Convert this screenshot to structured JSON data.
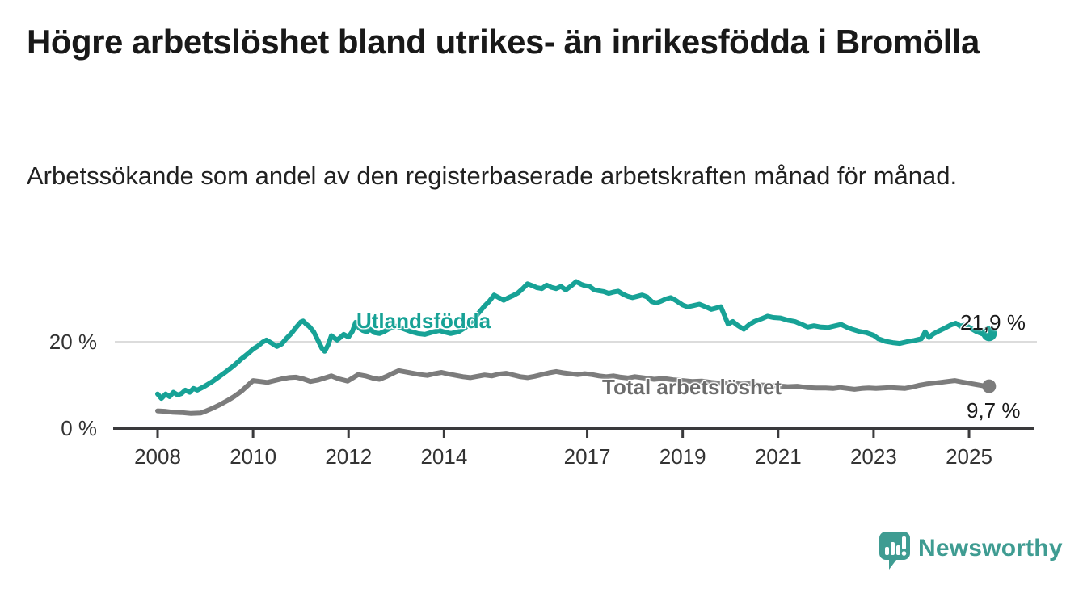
{
  "chart_data": {
    "type": "line",
    "title": "Högre arbetslöshet bland utrikes- än inrikesfödda i Bromölla",
    "subtitle": "Arbetssökande som andel av den registerbaserade arbetskraften månad för månad.",
    "unit": "%",
    "grid": "horizontal-only",
    "legend_position": "inline-labels-on-lines",
    "x_axis": {
      "ticks": [
        2008,
        2010,
        2012,
        2014,
        2017,
        2019,
        2021,
        2023,
        2025
      ],
      "range": [
        2007.1,
        2026.3
      ]
    },
    "y_axis": {
      "ticks": [
        {
          "value": 0,
          "label": "0 %"
        },
        {
          "value": 20,
          "label": "20 %"
        }
      ],
      "range": [
        0,
        43
      ]
    },
    "series": [
      {
        "name": "Utlandsfödda",
        "color": "#17a296",
        "end_value": 21.9,
        "end_label": "21,9 %",
        "points": [
          [
            2008.0,
            7.9
          ],
          [
            2008.08,
            6.9
          ],
          [
            2008.17,
            7.9
          ],
          [
            2008.25,
            7.3
          ],
          [
            2008.33,
            8.3
          ],
          [
            2008.42,
            7.7
          ],
          [
            2008.5,
            8.0
          ],
          [
            2008.58,
            8.8
          ],
          [
            2008.67,
            8.3
          ],
          [
            2008.75,
            9.2
          ],
          [
            2008.83,
            8.8
          ],
          [
            2008.92,
            9.3
          ],
          [
            2009.0,
            9.8
          ],
          [
            2009.15,
            10.8
          ],
          [
            2009.3,
            12.0
          ],
          [
            2009.45,
            13.2
          ],
          [
            2009.6,
            14.5
          ],
          [
            2009.75,
            16.0
          ],
          [
            2009.9,
            17.3
          ],
          [
            2010.0,
            18.3
          ],
          [
            2010.1,
            19.0
          ],
          [
            2010.2,
            19.9
          ],
          [
            2010.28,
            20.4
          ],
          [
            2010.4,
            19.6
          ],
          [
            2010.5,
            18.9
          ],
          [
            2010.6,
            19.5
          ],
          [
            2010.7,
            20.8
          ],
          [
            2010.8,
            21.9
          ],
          [
            2010.9,
            23.3
          ],
          [
            2011.0,
            24.6
          ],
          [
            2011.05,
            24.8
          ],
          [
            2011.12,
            24.0
          ],
          [
            2011.18,
            23.5
          ],
          [
            2011.27,
            22.3
          ],
          [
            2011.35,
            20.5
          ],
          [
            2011.44,
            18.5
          ],
          [
            2011.5,
            17.8
          ],
          [
            2011.57,
            19.2
          ],
          [
            2011.64,
            21.4
          ],
          [
            2011.7,
            20.9
          ],
          [
            2011.76,
            20.4
          ],
          [
            2011.83,
            21.0
          ],
          [
            2011.9,
            21.7
          ],
          [
            2012.0,
            21.1
          ],
          [
            2012.08,
            22.4
          ],
          [
            2012.15,
            24.5
          ],
          [
            2012.22,
            23.2
          ],
          [
            2012.3,
            22.6
          ],
          [
            2012.38,
            22.3
          ],
          [
            2012.45,
            22.9
          ],
          [
            2012.55,
            22.1
          ],
          [
            2012.65,
            21.9
          ],
          [
            2012.75,
            22.4
          ],
          [
            2012.85,
            23.0
          ],
          [
            2013.0,
            23.6
          ],
          [
            2013.15,
            23.0
          ],
          [
            2013.3,
            22.4
          ],
          [
            2013.45,
            21.9
          ],
          [
            2013.6,
            21.7
          ],
          [
            2013.75,
            22.2
          ],
          [
            2013.9,
            22.6
          ],
          [
            2014.0,
            22.3
          ],
          [
            2014.14,
            21.9
          ],
          [
            2014.3,
            22.3
          ],
          [
            2014.45,
            23.3
          ],
          [
            2014.6,
            24.9
          ],
          [
            2014.72,
            26.6
          ],
          [
            2014.85,
            28.3
          ],
          [
            2014.95,
            29.4
          ],
          [
            2015.05,
            30.8
          ],
          [
            2015.15,
            30.2
          ],
          [
            2015.25,
            29.6
          ],
          [
            2015.35,
            30.2
          ],
          [
            2015.45,
            30.7
          ],
          [
            2015.55,
            31.3
          ],
          [
            2015.65,
            32.3
          ],
          [
            2015.75,
            33.4
          ],
          [
            2015.85,
            33.0
          ],
          [
            2015.95,
            32.5
          ],
          [
            2016.05,
            32.3
          ],
          [
            2016.15,
            33.1
          ],
          [
            2016.25,
            32.6
          ],
          [
            2016.35,
            32.3
          ],
          [
            2016.45,
            32.8
          ],
          [
            2016.55,
            32.0
          ],
          [
            2016.65,
            32.8
          ],
          [
            2016.77,
            33.9
          ],
          [
            2016.87,
            33.3
          ],
          [
            2016.95,
            33.0
          ],
          [
            2017.05,
            32.8
          ],
          [
            2017.15,
            32.0
          ],
          [
            2017.25,
            31.8
          ],
          [
            2017.35,
            31.6
          ],
          [
            2017.45,
            31.2
          ],
          [
            2017.55,
            31.5
          ],
          [
            2017.65,
            31.7
          ],
          [
            2017.75,
            31.0
          ],
          [
            2017.85,
            30.5
          ],
          [
            2017.95,
            30.2
          ],
          [
            2018.05,
            30.5
          ],
          [
            2018.15,
            30.8
          ],
          [
            2018.25,
            30.4
          ],
          [
            2018.35,
            29.3
          ],
          [
            2018.45,
            29.0
          ],
          [
            2018.55,
            29.4
          ],
          [
            2018.65,
            29.9
          ],
          [
            2018.75,
            30.2
          ],
          [
            2018.85,
            29.6
          ],
          [
            2019.0,
            28.5
          ],
          [
            2019.1,
            28.1
          ],
          [
            2019.2,
            28.3
          ],
          [
            2019.35,
            28.7
          ],
          [
            2019.5,
            28.0
          ],
          [
            2019.6,
            27.5
          ],
          [
            2019.7,
            27.8
          ],
          [
            2019.8,
            28.1
          ],
          [
            2019.88,
            26.0
          ],
          [
            2019.95,
            24.1
          ],
          [
            2020.05,
            24.7
          ],
          [
            2020.15,
            23.8
          ],
          [
            2020.28,
            22.9
          ],
          [
            2020.4,
            24.0
          ],
          [
            2020.5,
            24.7
          ],
          [
            2020.65,
            25.3
          ],
          [
            2020.78,
            25.9
          ],
          [
            2020.9,
            25.6
          ],
          [
            2021.05,
            25.5
          ],
          [
            2021.2,
            25.0
          ],
          [
            2021.35,
            24.7
          ],
          [
            2021.5,
            24.0
          ],
          [
            2021.62,
            23.4
          ],
          [
            2021.75,
            23.7
          ],
          [
            2021.9,
            23.4
          ],
          [
            2022.05,
            23.3
          ],
          [
            2022.2,
            23.7
          ],
          [
            2022.32,
            24.0
          ],
          [
            2022.45,
            23.3
          ],
          [
            2022.55,
            22.9
          ],
          [
            2022.7,
            22.4
          ],
          [
            2022.85,
            22.1
          ],
          [
            2023.0,
            21.5
          ],
          [
            2023.1,
            20.7
          ],
          [
            2023.25,
            20.1
          ],
          [
            2023.4,
            19.8
          ],
          [
            2023.55,
            19.6
          ],
          [
            2023.7,
            20.0
          ],
          [
            2023.85,
            20.3
          ],
          [
            2024.0,
            20.7
          ],
          [
            2024.08,
            22.3
          ],
          [
            2024.16,
            21.0
          ],
          [
            2024.25,
            21.8
          ],
          [
            2024.35,
            22.4
          ],
          [
            2024.5,
            23.2
          ],
          [
            2024.6,
            23.8
          ],
          [
            2024.72,
            24.3
          ],
          [
            2024.82,
            23.6
          ],
          [
            2024.92,
            23.9
          ],
          [
            2025.05,
            23.0
          ],
          [
            2025.15,
            22.4
          ],
          [
            2025.28,
            21.8
          ],
          [
            2025.42,
            21.9
          ]
        ]
      },
      {
        "name": "Total arbetslöshet",
        "color": "#7c7c7c",
        "label_color": "#6b6b6b",
        "end_value": 9.7,
        "end_label": "9,7 %",
        "points": [
          [
            2008.0,
            4.0
          ],
          [
            2008.15,
            3.9
          ],
          [
            2008.3,
            3.7
          ],
          [
            2008.5,
            3.6
          ],
          [
            2008.7,
            3.4
          ],
          [
            2008.9,
            3.5
          ],
          [
            2009.0,
            3.9
          ],
          [
            2009.15,
            4.6
          ],
          [
            2009.3,
            5.4
          ],
          [
            2009.45,
            6.3
          ],
          [
            2009.6,
            7.3
          ],
          [
            2009.75,
            8.5
          ],
          [
            2009.9,
            10.0
          ],
          [
            2010.0,
            11.0
          ],
          [
            2010.15,
            10.8
          ],
          [
            2010.3,
            10.6
          ],
          [
            2010.45,
            11.0
          ],
          [
            2010.6,
            11.4
          ],
          [
            2010.75,
            11.7
          ],
          [
            2010.9,
            11.8
          ],
          [
            2011.05,
            11.4
          ],
          [
            2011.2,
            10.8
          ],
          [
            2011.35,
            11.1
          ],
          [
            2011.5,
            11.6
          ],
          [
            2011.64,
            12.1
          ],
          [
            2011.8,
            11.4
          ],
          [
            2011.98,
            10.9
          ],
          [
            2012.1,
            11.7
          ],
          [
            2012.2,
            12.4
          ],
          [
            2012.35,
            12.1
          ],
          [
            2012.5,
            11.6
          ],
          [
            2012.65,
            11.3
          ],
          [
            2012.8,
            12.0
          ],
          [
            2012.95,
            12.8
          ],
          [
            2013.05,
            13.3
          ],
          [
            2013.2,
            13.0
          ],
          [
            2013.35,
            12.7
          ],
          [
            2013.5,
            12.4
          ],
          [
            2013.65,
            12.2
          ],
          [
            2013.8,
            12.6
          ],
          [
            2013.95,
            12.9
          ],
          [
            2014.1,
            12.5
          ],
          [
            2014.25,
            12.2
          ],
          [
            2014.4,
            11.9
          ],
          [
            2014.55,
            11.7
          ],
          [
            2014.7,
            12.0
          ],
          [
            2014.85,
            12.3
          ],
          [
            2015.0,
            12.1
          ],
          [
            2015.15,
            12.5
          ],
          [
            2015.3,
            12.7
          ],
          [
            2015.45,
            12.3
          ],
          [
            2015.6,
            11.9
          ],
          [
            2015.75,
            11.7
          ],
          [
            2015.9,
            12.0
          ],
          [
            2016.05,
            12.4
          ],
          [
            2016.2,
            12.8
          ],
          [
            2016.35,
            13.1
          ],
          [
            2016.5,
            12.8
          ],
          [
            2016.65,
            12.6
          ],
          [
            2016.8,
            12.4
          ],
          [
            2016.95,
            12.6
          ],
          [
            2017.1,
            12.4
          ],
          [
            2017.25,
            12.1
          ],
          [
            2017.4,
            11.9
          ],
          [
            2017.55,
            12.1
          ],
          [
            2017.7,
            11.8
          ],
          [
            2017.85,
            11.6
          ],
          [
            2018.0,
            11.9
          ],
          [
            2018.2,
            11.6
          ],
          [
            2018.4,
            11.3
          ],
          [
            2018.6,
            11.5
          ],
          [
            2018.8,
            11.2
          ],
          [
            2019.0,
            11.0
          ],
          [
            2019.2,
            10.8
          ],
          [
            2019.4,
            10.9
          ],
          [
            2019.6,
            10.6
          ],
          [
            2019.8,
            10.4
          ],
          [
            2020.0,
            10.5
          ],
          [
            2020.2,
            10.2
          ],
          [
            2020.4,
            10.3
          ],
          [
            2020.6,
            10.0
          ],
          [
            2020.8,
            9.9
          ],
          [
            2021.0,
            9.8
          ],
          [
            2021.2,
            9.6
          ],
          [
            2021.4,
            9.7
          ],
          [
            2021.6,
            9.4
          ],
          [
            2021.8,
            9.3
          ],
          [
            2022.0,
            9.3
          ],
          [
            2022.15,
            9.2
          ],
          [
            2022.3,
            9.4
          ],
          [
            2022.45,
            9.2
          ],
          [
            2022.6,
            9.0
          ],
          [
            2022.75,
            9.2
          ],
          [
            2022.9,
            9.3
          ],
          [
            2023.05,
            9.2
          ],
          [
            2023.2,
            9.3
          ],
          [
            2023.35,
            9.4
          ],
          [
            2023.5,
            9.3
          ],
          [
            2023.65,
            9.2
          ],
          [
            2023.8,
            9.5
          ],
          [
            2023.95,
            9.9
          ],
          [
            2024.1,
            10.2
          ],
          [
            2024.25,
            10.4
          ],
          [
            2024.4,
            10.6
          ],
          [
            2024.55,
            10.8
          ],
          [
            2024.7,
            11.0
          ],
          [
            2024.85,
            10.7
          ],
          [
            2025.0,
            10.4
          ],
          [
            2025.15,
            10.1
          ],
          [
            2025.3,
            9.8
          ],
          [
            2025.42,
            9.7
          ]
        ]
      }
    ],
    "colors": {
      "gridline": "#dcdcdc",
      "axis_line": "#3a3a3c",
      "axis_text": "#333333",
      "value_label_text": "#1a1a1a",
      "title_text": "#191919"
    }
  },
  "footer": {
    "brand": "Newsworthy",
    "brand_color": "#3f9c92",
    "logo_icon": "speech-bubble-bar-chart-exclamation"
  }
}
